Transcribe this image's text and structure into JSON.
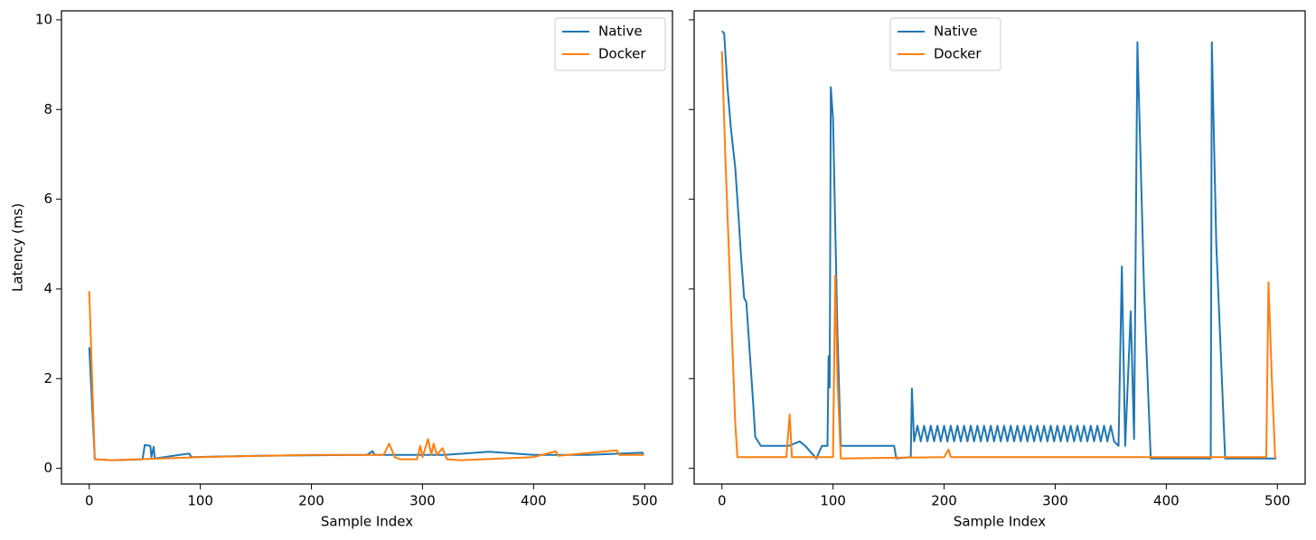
{
  "chart_data": [
    {
      "type": "line",
      "xlabel": "Sample Index",
      "ylabel": "Latency (ms)",
      "xlim": [
        -25,
        525
      ],
      "ylim": [
        -0.35,
        10.2
      ],
      "xticks": [
        0,
        100,
        200,
        300,
        400,
        500
      ],
      "yticks": [
        0,
        2,
        4,
        6,
        8,
        10
      ],
      "legend": "upper right",
      "series": [
        {
          "name": "Native",
          "color": "#1f77b4",
          "x": [
            0,
            5,
            20,
            48,
            50,
            55,
            56,
            58,
            59,
            90,
            92,
            150,
            250,
            255,
            257,
            300,
            320,
            360,
            400,
            450,
            498,
            499
          ],
          "values": [
            2.7,
            0.2,
            0.18,
            0.2,
            0.52,
            0.5,
            0.25,
            0.48,
            0.22,
            0.33,
            0.25,
            0.28,
            0.3,
            0.38,
            0.3,
            0.3,
            0.3,
            0.37,
            0.3,
            0.3,
            0.35,
            0.32
          ]
        },
        {
          "name": "Docker",
          "color": "#ff7f0e",
          "x": [
            0,
            5,
            20,
            100,
            200,
            265,
            270,
            275,
            280,
            295,
            298,
            300,
            305,
            308,
            310,
            313,
            318,
            322,
            335,
            400,
            420,
            422,
            475,
            477,
            499
          ],
          "values": [
            3.95,
            0.2,
            0.18,
            0.25,
            0.3,
            0.3,
            0.55,
            0.25,
            0.2,
            0.2,
            0.5,
            0.25,
            0.65,
            0.3,
            0.55,
            0.3,
            0.45,
            0.2,
            0.18,
            0.25,
            0.38,
            0.28,
            0.4,
            0.3,
            0.3
          ]
        }
      ]
    },
    {
      "type": "line",
      "xlabel": "Sample Index",
      "xlim": [
        -25,
        525
      ],
      "ylim": [
        -0.35,
        10.2
      ],
      "xticks": [
        0,
        100,
        200,
        300,
        400,
        500
      ],
      "yticks": [
        0,
        2,
        4,
        6,
        8,
        10
      ],
      "legend": "upper center",
      "series": [
        {
          "name": "Native",
          "color": "#1f77b4",
          "x": [
            0,
            2,
            5,
            8,
            12,
            15,
            17,
            20,
            22,
            25,
            28,
            30,
            35,
            60,
            70,
            75,
            85,
            90,
            95,
            96,
            97,
            98,
            100,
            104,
            107,
            130,
            155,
            157,
            170,
            171,
            173,
            176,
            179,
            182,
            185,
            188,
            191,
            194,
            197,
            200,
            203,
            206,
            209,
            212,
            215,
            218,
            221,
            224,
            227,
            230,
            233,
            236,
            239,
            242,
            245,
            248,
            251,
            254,
            257,
            260,
            263,
            266,
            269,
            272,
            275,
            278,
            281,
            284,
            287,
            290,
            293,
            296,
            299,
            302,
            305,
            308,
            311,
            314,
            317,
            320,
            323,
            326,
            329,
            332,
            335,
            338,
            341,
            344,
            347,
            350,
            353,
            357,
            360,
            363,
            368,
            371,
            374,
            380,
            386,
            440,
            441,
            445,
            453,
            499
          ],
          "values": [
            9.75,
            9.7,
            8.5,
            7.6,
            6.7,
            5.6,
            4.8,
            3.8,
            3.7,
            2.6,
            1.5,
            0.7,
            0.5,
            0.5,
            0.6,
            0.5,
            0.22,
            0.5,
            0.5,
            2.5,
            1.8,
            8.5,
            7.8,
            3,
            0.5,
            0.5,
            0.5,
            0.22,
            0.25,
            1.78,
            0.6,
            0.95,
            0.6,
            0.95,
            0.6,
            0.95,
            0.6,
            0.95,
            0.6,
            0.95,
            0.6,
            0.95,
            0.6,
            0.95,
            0.6,
            0.95,
            0.6,
            0.95,
            0.6,
            0.95,
            0.6,
            0.95,
            0.6,
            0.95,
            0.6,
            0.95,
            0.6,
            0.95,
            0.6,
            0.95,
            0.6,
            0.95,
            0.6,
            0.95,
            0.6,
            0.95,
            0.6,
            0.95,
            0.6,
            0.95,
            0.6,
            0.95,
            0.6,
            0.95,
            0.6,
            0.95,
            0.6,
            0.95,
            0.6,
            0.95,
            0.6,
            0.95,
            0.6,
            0.95,
            0.6,
            0.95,
            0.6,
            0.95,
            0.6,
            0.95,
            0.6,
            0.5,
            4.5,
            0.5,
            3.5,
            0.65,
            9.5,
            4,
            0.22,
            0.22,
            9.5,
            5,
            0.22,
            0.22
          ]
        },
        {
          "name": "Docker",
          "color": "#ff7f0e",
          "x": [
            0,
            3,
            6,
            9,
            12,
            14,
            30,
            58,
            61,
            63,
            100,
            102,
            104,
            107,
            200,
            204,
            206,
            300,
            490,
            492,
            495,
            498,
            499
          ],
          "values": [
            9.3,
            7,
            5,
            3,
            1,
            0.25,
            0.25,
            0.25,
            1.2,
            0.25,
            0.25,
            4.3,
            2,
            0.22,
            0.25,
            0.42,
            0.25,
            0.25,
            0.25,
            4.15,
            2,
            0.25,
            0.22
          ]
        }
      ]
    }
  ]
}
